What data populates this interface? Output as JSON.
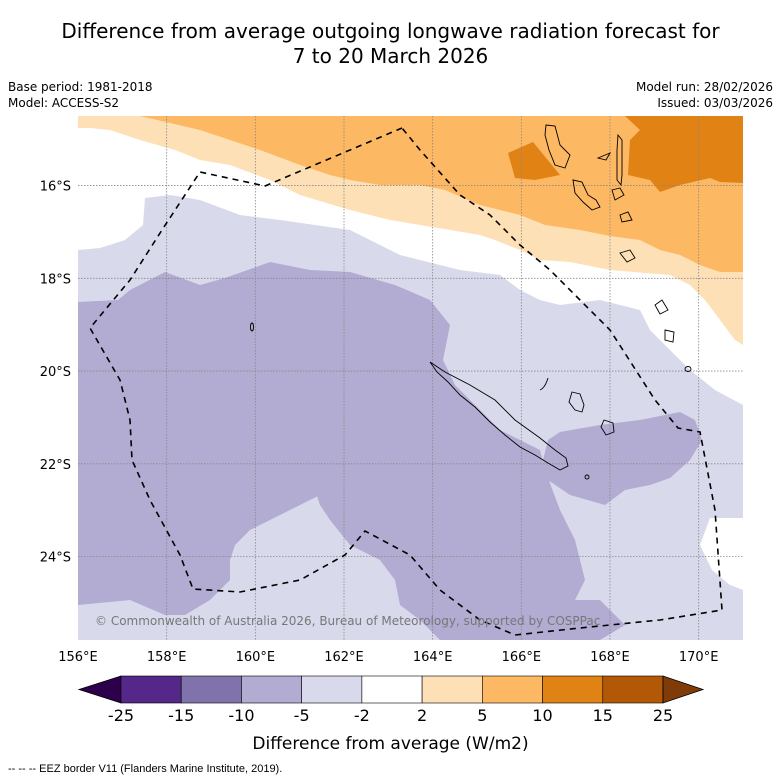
{
  "title": {
    "line1": "Difference from average outgoing longwave radiation forecast for",
    "line2": "7 to 20 March 2026"
  },
  "meta_left": {
    "base_period": "Base period: 1981-2018",
    "model": "Model: ACCESS-S2"
  },
  "meta_right": {
    "model_run": "Model run: 28/02/2026",
    "issued": "Issued: 03/03/2026"
  },
  "map": {
    "region": "New Caledonia / Vanuatu, South-West Pacific",
    "lon_range": [
      156,
      171
    ],
    "lat_range": [
      -14.5,
      -25.8
    ],
    "lon_ticks": [
      "156°E",
      "158°E",
      "160°E",
      "162°E",
      "164°E",
      "166°E",
      "168°E",
      "170°E"
    ],
    "lat_ticks": [
      "16°S",
      "18°S",
      "20°S",
      "22°S",
      "24°S"
    ],
    "copyright": "© Commonwealth of Australia 2026, Bureau of Meteorology, supported by COSPPac",
    "eez_label": "EEZ border",
    "anomaly_regions": [
      {
        "category": "5 to 10",
        "location": "north (Vanuatu)"
      },
      {
        "category": "10 to 15",
        "location": "north-east corner and small patch near 164-165°E 15.5°S"
      },
      {
        "category": "2 to 5",
        "location": "band 15-18.5°S"
      },
      {
        "category": "-2 to 2",
        "location": "band 16-18°S and east edge 20-25°S"
      },
      {
        "category": "-5 to -2",
        "location": "central and south"
      },
      {
        "category": "-10 to -5",
        "location": "west, around New Caledonia and south-east of Loyalty Islands"
      }
    ]
  },
  "colorbar": {
    "label": "Difference from average (W/m2)",
    "ticks": [
      "-25",
      "-15",
      "-10",
      "-5",
      "-2",
      "2",
      "5",
      "10",
      "15",
      "25"
    ],
    "under_color": "#2d004b",
    "over_color": "#7f3b08",
    "bins": [
      {
        "range": "-25 to -15",
        "color": "#542788"
      },
      {
        "range": "-15 to -10",
        "color": "#8073ac"
      },
      {
        "range": "-10 to -5",
        "color": "#b2abd2"
      },
      {
        "range": "-5 to -2",
        "color": "#d8daeb"
      },
      {
        "range": "-2 to 2",
        "color": "#ffffff"
      },
      {
        "range": "2 to 5",
        "color": "#fee0b6"
      },
      {
        "range": "5 to 10",
        "color": "#fdb863"
      },
      {
        "range": "10 to 15",
        "color": "#e08214"
      },
      {
        "range": "15 to 25",
        "color": "#b35806"
      }
    ]
  },
  "footnote": "--  --  -- EEZ border V11 (Flanders Marine Institute, 2019)."
}
